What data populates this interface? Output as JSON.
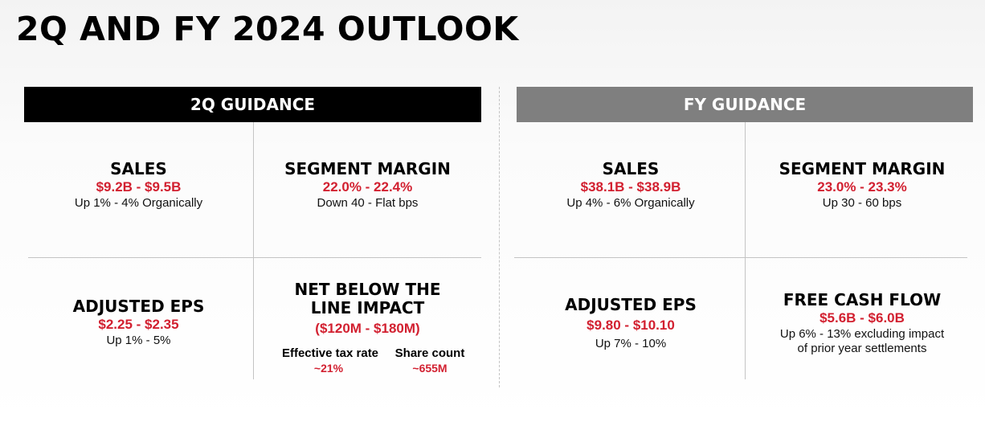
{
  "title": "2Q AND FY 2024 OUTLOOK",
  "q2": {
    "header": "2Q GUIDANCE",
    "sales": {
      "label": "SALES",
      "value": "$9.2B - $9.5B",
      "note": "Up 1% - 4% Organically"
    },
    "segment_margin": {
      "label": "SEGMENT MARGIN",
      "value": "22.0% - 22.4%",
      "note": "Down 40 - Flat bps"
    },
    "adjusted_eps": {
      "label": "ADJUSTED EPS",
      "value": "$2.25 - $2.35",
      "note": "Up 1% - 5%"
    },
    "net_below_line": {
      "label_line1": "NET BELOW THE",
      "label_line2": "LINE IMPACT",
      "value": "($120M - $180M)",
      "tax_rate": {
        "label": "Effective tax rate",
        "value": "~21%"
      },
      "share_count": {
        "label": "Share count",
        "value": "~655M"
      }
    }
  },
  "fy": {
    "header": "FY GUIDANCE",
    "sales": {
      "label": "SALES",
      "value": "$38.1B - $38.9B",
      "note": "Up 4% - 6% Organically"
    },
    "segment_margin": {
      "label": "SEGMENT MARGIN",
      "value": "23.0% - 23.3%",
      "note": "Up 30 - 60 bps"
    },
    "adjusted_eps": {
      "label": "ADJUSTED EPS",
      "value": "$9.80 - $10.10",
      "note": "Up 7% - 10%"
    },
    "free_cash_flow": {
      "label": "FREE CASH FLOW",
      "value": "$5.6B - $6.0B",
      "note_line1": "Up 6% - 13% excluding impact",
      "note_line2": "of prior year settlements"
    }
  }
}
